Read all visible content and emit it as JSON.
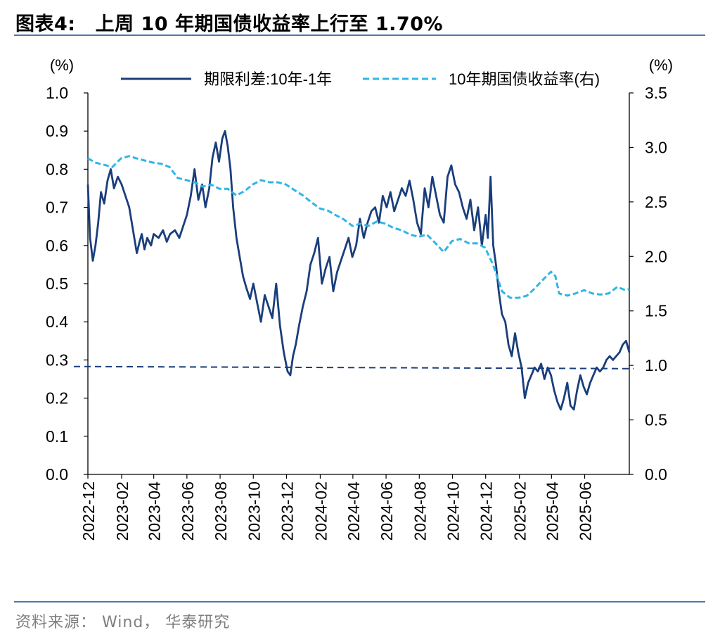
{
  "header": {
    "label": "图表4:",
    "title": "上周 10 年期国债收益率上行至 1.70%"
  },
  "footer": {
    "source": "资料来源： Wind， 华泰研究"
  },
  "colors": {
    "term_spread": "#1a3e7c",
    "yield_10y": "#2fb6e6",
    "reference_line": "#1a3e7c",
    "rule": "#4f78a8"
  },
  "chart_data": {
    "type": "line",
    "left_unit_label": "(%)",
    "right_unit_label": "(%)",
    "left_ylim": [
      0,
      1.0
    ],
    "left_ticks": [
      "0.0",
      "0.1",
      "0.2",
      "0.3",
      "0.4",
      "0.5",
      "0.6",
      "0.7",
      "0.8",
      "0.9",
      "1.0"
    ],
    "right_ylim": [
      0,
      3.5
    ],
    "right_ticks": [
      "0.0",
      "0.5",
      "1.0",
      "1.5",
      "2.0",
      "2.5",
      "3.0",
      "3.5"
    ],
    "x_range": [
      "2022-12-01",
      "2025-08-22"
    ],
    "x_ticks": [
      "2022-12",
      "2023-02",
      "2023-04",
      "2023-06",
      "2023-08",
      "2023-10",
      "2023-12",
      "2024-02",
      "2024-04",
      "2024-06",
      "2024-08",
      "2024-10",
      "2024-12",
      "2025-02",
      "2025-04",
      "2025-06"
    ],
    "legend_position": "top",
    "grid": false,
    "reference_line": {
      "axis": "right",
      "y_start": 0.99,
      "y_end": 0.97,
      "style": "dashed"
    },
    "series": [
      {
        "name": "期限利差:10年-1年",
        "axis": "left",
        "style": "solid",
        "x": [
          "2022-12-01",
          "2022-12-05",
          "2022-12-10",
          "2022-12-15",
          "2022-12-20",
          "2022-12-25",
          "2022-12-31",
          "2023-01-06",
          "2023-01-12",
          "2023-01-18",
          "2023-01-25",
          "2023-02-01",
          "2023-02-08",
          "2023-02-15",
          "2023-02-22",
          "2023-03-01",
          "2023-03-06",
          "2023-03-10",
          "2023-03-15",
          "2023-03-20",
          "2023-03-27",
          "2023-04-01",
          "2023-04-10",
          "2023-04-18",
          "2023-04-25",
          "2023-05-01",
          "2023-05-10",
          "2023-05-18",
          "2023-05-25",
          "2023-06-01",
          "2023-06-08",
          "2023-06-15",
          "2023-06-22",
          "2023-06-29",
          "2023-07-05",
          "2023-07-12",
          "2023-07-18",
          "2023-07-24",
          "2023-07-30",
          "2023-08-05",
          "2023-08-10",
          "2023-08-15",
          "2023-08-20",
          "2023-08-25",
          "2023-08-31",
          "2023-09-06",
          "2023-09-12",
          "2023-09-18",
          "2023-09-25",
          "2023-10-01",
          "2023-10-08",
          "2023-10-15",
          "2023-10-22",
          "2023-10-29",
          "2023-11-05",
          "2023-11-12",
          "2023-11-19",
          "2023-11-26",
          "2023-12-03",
          "2023-12-08",
          "2023-12-13",
          "2023-12-18",
          "2023-12-24",
          "2023-12-31",
          "2024-01-07",
          "2024-01-14",
          "2024-01-21",
          "2024-01-28",
          "2024-02-04",
          "2024-02-11",
          "2024-02-18",
          "2024-02-25",
          "2024-03-03",
          "2024-03-10",
          "2024-03-17",
          "2024-03-24",
          "2024-03-31",
          "2024-04-07",
          "2024-04-14",
          "2024-04-21",
          "2024-04-28",
          "2024-05-05",
          "2024-05-12",
          "2024-05-19",
          "2024-05-26",
          "2024-06-02",
          "2024-06-09",
          "2024-06-16",
          "2024-06-23",
          "2024-06-30",
          "2024-07-07",
          "2024-07-14",
          "2024-07-21",
          "2024-07-28",
          "2024-08-04",
          "2024-08-11",
          "2024-08-18",
          "2024-08-25",
          "2024-09-01",
          "2024-09-08",
          "2024-09-15",
          "2024-09-22",
          "2024-09-29",
          "2024-10-06",
          "2024-10-13",
          "2024-10-20",
          "2024-10-27",
          "2024-11-03",
          "2024-11-10",
          "2024-11-17",
          "2024-11-24",
          "2024-12-01",
          "2024-12-05",
          "2024-12-10",
          "2024-12-15",
          "2024-12-20",
          "2024-12-25",
          "2024-12-31",
          "2025-01-06",
          "2025-01-12",
          "2025-01-18",
          "2025-01-24",
          "2025-01-30",
          "2025-02-05",
          "2025-02-11",
          "2025-02-17",
          "2025-02-23",
          "2025-03-01",
          "2025-03-07",
          "2025-03-13",
          "2025-03-19",
          "2025-03-25",
          "2025-03-31",
          "2025-04-06",
          "2025-04-12",
          "2025-04-18",
          "2025-04-24",
          "2025-04-30",
          "2025-05-06",
          "2025-05-12",
          "2025-05-18",
          "2025-05-24",
          "2025-05-30",
          "2025-06-05",
          "2025-06-11",
          "2025-06-17",
          "2025-06-23",
          "2025-06-29",
          "2025-07-05",
          "2025-07-11",
          "2025-07-17",
          "2025-07-23",
          "2025-07-29",
          "2025-08-04",
          "2025-08-10",
          "2025-08-16",
          "2025-08-22"
        ],
        "y": [
          0.76,
          0.62,
          0.56,
          0.6,
          0.66,
          0.74,
          0.71,
          0.77,
          0.8,
          0.75,
          0.78,
          0.76,
          0.73,
          0.7,
          0.64,
          0.58,
          0.61,
          0.63,
          0.59,
          0.62,
          0.6,
          0.63,
          0.62,
          0.64,
          0.61,
          0.63,
          0.64,
          0.62,
          0.65,
          0.68,
          0.73,
          0.8,
          0.72,
          0.76,
          0.7,
          0.75,
          0.83,
          0.87,
          0.82,
          0.88,
          0.9,
          0.86,
          0.8,
          0.7,
          0.62,
          0.57,
          0.52,
          0.49,
          0.46,
          0.5,
          0.45,
          0.4,
          0.47,
          0.44,
          0.41,
          0.5,
          0.39,
          0.32,
          0.27,
          0.26,
          0.31,
          0.34,
          0.39,
          0.44,
          0.48,
          0.55,
          0.58,
          0.62,
          0.5,
          0.54,
          0.57,
          0.48,
          0.53,
          0.56,
          0.59,
          0.62,
          0.57,
          0.6,
          0.67,
          0.62,
          0.66,
          0.69,
          0.7,
          0.66,
          0.73,
          0.7,
          0.74,
          0.69,
          0.72,
          0.75,
          0.73,
          0.77,
          0.72,
          0.66,
          0.63,
          0.75,
          0.7,
          0.78,
          0.73,
          0.68,
          0.66,
          0.78,
          0.81,
          0.76,
          0.74,
          0.7,
          0.67,
          0.72,
          0.64,
          0.7,
          0.6,
          0.68,
          0.62,
          0.78,
          0.6,
          0.55,
          0.48,
          0.42,
          0.4,
          0.34,
          0.31,
          0.37,
          0.32,
          0.28,
          0.2,
          0.24,
          0.26,
          0.28,
          0.27,
          0.29,
          0.25,
          0.28,
          0.26,
          0.22,
          0.19,
          0.17,
          0.2,
          0.24,
          0.18,
          0.17,
          0.22,
          0.26,
          0.23,
          0.21,
          0.24,
          0.26,
          0.28,
          0.27,
          0.28,
          0.3,
          0.31,
          0.3,
          0.31,
          0.32,
          0.34,
          0.35,
          0.32
        ]
      },
      {
        "name": "10年期国债收益率(右)",
        "axis": "right",
        "style": "dashed",
        "x": [
          "2022-12-01",
          "2022-12-15",
          "2022-12-31",
          "2023-01-15",
          "2023-01-31",
          "2023-02-15",
          "2023-02-28",
          "2023-03-15",
          "2023-03-31",
          "2023-04-15",
          "2023-04-30",
          "2023-05-15",
          "2023-05-31",
          "2023-06-15",
          "2023-06-30",
          "2023-07-15",
          "2023-07-31",
          "2023-08-15",
          "2023-08-31",
          "2023-09-15",
          "2023-09-30",
          "2023-10-15",
          "2023-10-31",
          "2023-11-15",
          "2023-11-30",
          "2023-12-15",
          "2023-12-31",
          "2024-01-15",
          "2024-01-31",
          "2024-02-15",
          "2024-02-29",
          "2024-03-15",
          "2024-03-31",
          "2024-04-15",
          "2024-04-30",
          "2024-05-15",
          "2024-05-31",
          "2024-06-15",
          "2024-06-30",
          "2024-07-15",
          "2024-07-31",
          "2024-08-15",
          "2024-08-31",
          "2024-09-15",
          "2024-09-30",
          "2024-10-15",
          "2024-10-31",
          "2024-11-15",
          "2024-11-30",
          "2024-12-15",
          "2024-12-31",
          "2025-01-15",
          "2025-01-31",
          "2025-02-15",
          "2025-02-28",
          "2025-03-15",
          "2025-03-31",
          "2025-04-08",
          "2025-04-15",
          "2025-04-30",
          "2025-05-15",
          "2025-05-31",
          "2025-06-15",
          "2025-06-30",
          "2025-07-15",
          "2025-07-31",
          "2025-08-15",
          "2025-08-22"
        ],
        "y": [
          2.9,
          2.86,
          2.84,
          2.82,
          2.9,
          2.92,
          2.9,
          2.88,
          2.86,
          2.85,
          2.82,
          2.72,
          2.7,
          2.68,
          2.64,
          2.66,
          2.62,
          2.62,
          2.56,
          2.6,
          2.66,
          2.7,
          2.68,
          2.68,
          2.66,
          2.61,
          2.56,
          2.5,
          2.44,
          2.42,
          2.38,
          2.34,
          2.28,
          2.3,
          2.28,
          2.32,
          2.3,
          2.26,
          2.24,
          2.2,
          2.18,
          2.2,
          2.12,
          2.04,
          2.14,
          2.16,
          2.12,
          2.12,
          2.08,
          1.92,
          1.68,
          1.62,
          1.62,
          1.64,
          1.7,
          1.78,
          1.86,
          1.82,
          1.66,
          1.64,
          1.66,
          1.69,
          1.66,
          1.65,
          1.66,
          1.72,
          1.69,
          1.7
        ]
      }
    ]
  }
}
